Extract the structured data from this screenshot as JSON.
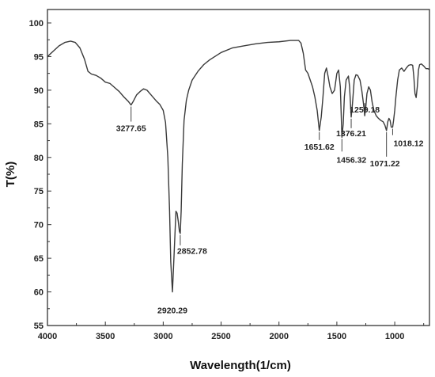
{
  "chart_data": {
    "type": "line",
    "title": "",
    "xlabel": "Wavelength(1/cm)",
    "ylabel": "T(%)",
    "xlim": [
      4000,
      700
    ],
    "ylim": [
      55,
      102
    ],
    "x_reversed": true,
    "grid": false,
    "x_ticks": [
      "4000",
      "3500",
      "3000",
      "2500",
      "2000",
      "1500",
      "1000"
    ],
    "y_ticks": [
      "55",
      "60",
      "65",
      "70",
      "75",
      "80",
      "85",
      "90",
      "95",
      "100"
    ],
    "series": [
      {
        "points": [
          [
            4000,
            95.0
          ],
          [
            3950,
            95.8
          ],
          [
            3900,
            96.6
          ],
          [
            3850,
            97.1
          ],
          [
            3800,
            97.3
          ],
          [
            3760,
            97.1
          ],
          [
            3720,
            96.3
          ],
          [
            3680,
            94.6
          ],
          [
            3650,
            92.8
          ],
          [
            3620,
            92.4
          ],
          [
            3580,
            92.2
          ],
          [
            3540,
            91.8
          ],
          [
            3500,
            91.2
          ],
          [
            3460,
            91.0
          ],
          [
            3420,
            90.4
          ],
          [
            3380,
            89.8
          ],
          [
            3340,
            89.0
          ],
          [
            3300,
            88.3
          ],
          [
            3277.65,
            87.8
          ],
          [
            3260,
            88.3
          ],
          [
            3230,
            89.3
          ],
          [
            3200,
            89.8
          ],
          [
            3170,
            90.2
          ],
          [
            3140,
            90.0
          ],
          [
            3100,
            89.2
          ],
          [
            3060,
            88.4
          ],
          [
            3030,
            87.9
          ],
          [
            3000,
            87.0
          ],
          [
            2980,
            85.2
          ],
          [
            2960,
            80.0
          ],
          [
            2945,
            72.0
          ],
          [
            2935,
            64.5
          ],
          [
            2920.29,
            60.0
          ],
          [
            2905,
            66.0
          ],
          [
            2890,
            72.0
          ],
          [
            2880,
            71.7
          ],
          [
            2870,
            70.5
          ],
          [
            2860,
            69.0
          ],
          [
            2852.78,
            68.7
          ],
          [
            2845,
            72.0
          ],
          [
            2835,
            79.0
          ],
          [
            2820,
            85.5
          ],
          [
            2800,
            88.5
          ],
          [
            2780,
            90.0
          ],
          [
            2750,
            91.5
          ],
          [
            2700,
            92.8
          ],
          [
            2650,
            93.8
          ],
          [
            2600,
            94.5
          ],
          [
            2500,
            95.6
          ],
          [
            2400,
            96.3
          ],
          [
            2300,
            96.6
          ],
          [
            2200,
            96.9
          ],
          [
            2100,
            97.1
          ],
          [
            2000,
            97.2
          ],
          [
            1900,
            97.4
          ],
          [
            1830,
            97.4
          ],
          [
            1810,
            97.0
          ],
          [
            1790,
            95.5
          ],
          [
            1770,
            93.0
          ],
          [
            1750,
            92.5
          ],
          [
            1730,
            91.5
          ],
          [
            1710,
            90.5
          ],
          [
            1690,
            89.0
          ],
          [
            1670,
            87.0
          ],
          [
            1651.62,
            84.0
          ],
          [
            1635,
            86.0
          ],
          [
            1620,
            89.0
          ],
          [
            1605,
            92.5
          ],
          [
            1590,
            93.3
          ],
          [
            1575,
            92.0
          ],
          [
            1560,
            90.5
          ],
          [
            1540,
            89.5
          ],
          [
            1520,
            90.0
          ],
          [
            1500,
            92.5
          ],
          [
            1485,
            93.0
          ],
          [
            1470,
            90.5
          ],
          [
            1456.32,
            83.0
          ],
          [
            1445,
            85.0
          ],
          [
            1435,
            89.0
          ],
          [
            1420,
            91.5
          ],
          [
            1400,
            92.1
          ],
          [
            1390,
            90.5
          ],
          [
            1376.21,
            86.0
          ],
          [
            1365,
            88.0
          ],
          [
            1350,
            91.5
          ],
          [
            1335,
            92.3
          ],
          [
            1320,
            92.2
          ],
          [
            1300,
            91.5
          ],
          [
            1285,
            90.0
          ],
          [
            1270,
            88.0
          ],
          [
            1259.18,
            86.2
          ],
          [
            1250,
            87.5
          ],
          [
            1240,
            89.5
          ],
          [
            1225,
            90.5
          ],
          [
            1210,
            90.0
          ],
          [
            1195,
            88.2
          ],
          [
            1180,
            87.0
          ],
          [
            1160,
            86.2
          ],
          [
            1140,
            85.8
          ],
          [
            1120,
            85.5
          ],
          [
            1100,
            85.3
          ],
          [
            1085,
            84.8
          ],
          [
            1071.22,
            84.0
          ],
          [
            1060,
            85.3
          ],
          [
            1050,
            85.8
          ],
          [
            1040,
            85.5
          ],
          [
            1030,
            84.5
          ],
          [
            1018.12,
            84.5
          ],
          [
            1010,
            85.5
          ],
          [
            1000,
            87.0
          ],
          [
            990,
            89.0
          ],
          [
            975,
            91.5
          ],
          [
            960,
            93.0
          ],
          [
            940,
            93.3
          ],
          [
            920,
            92.8
          ],
          [
            900,
            93.3
          ],
          [
            880,
            93.7
          ],
          [
            860,
            93.8
          ],
          [
            845,
            93.7
          ],
          [
            835,
            92.0
          ],
          [
            825,
            89.5
          ],
          [
            815,
            88.9
          ],
          [
            805,
            90.5
          ],
          [
            795,
            93.0
          ],
          [
            785,
            93.8
          ],
          [
            770,
            93.9
          ],
          [
            750,
            93.6
          ],
          [
            730,
            93.2
          ],
          [
            715,
            93.2
          ],
          [
            700,
            93.1
          ]
        ]
      }
    ],
    "annotations": [
      {
        "label": "3277.65",
        "x": 3277.65,
        "y": 87.8
      },
      {
        "label": "2920.29",
        "x": 2920.29,
        "y": 60.0
      },
      {
        "label": "2852.78",
        "x": 2852.78,
        "y": 68.7
      },
      {
        "label": "1651.62",
        "x": 1651.62,
        "y": 84.0
      },
      {
        "label": "1456.32",
        "x": 1456.32,
        "y": 83.0
      },
      {
        "label": "1376.21",
        "x": 1376.21,
        "y": 86.0
      },
      {
        "label": "1259.18",
        "x": 1259.18,
        "y": 86.2
      },
      {
        "label": "1071.22",
        "x": 1071.22,
        "y": 84.0
      },
      {
        "label": "1018.12",
        "x": 1018.12,
        "y": 84.5
      }
    ]
  }
}
